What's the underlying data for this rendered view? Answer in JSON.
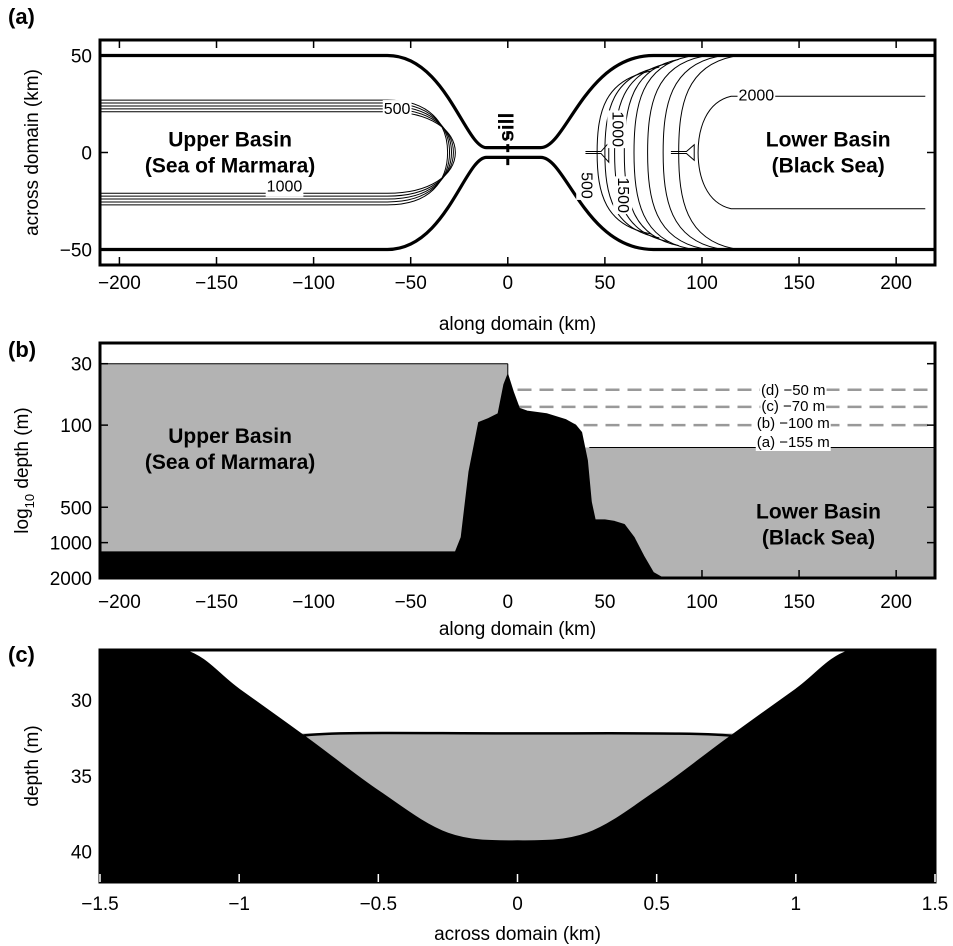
{
  "figure": {
    "panels": [
      "(a)",
      "(b)",
      "(c)"
    ]
  },
  "chart_data": [
    {
      "panel": "(a)",
      "type": "contour",
      "xlabel": "along domain (km)",
      "ylabel": "across domain (km)",
      "xlim": [
        -210,
        220
      ],
      "ylim": [
        -58,
        58
      ],
      "xticks": [
        -200,
        -150,
        -100,
        -50,
        0,
        50,
        100,
        150,
        200
      ],
      "yticks": [
        50,
        0,
        -50
      ],
      "xticklabels": [
        "−200",
        "−150",
        "−100",
        "−50",
        "0",
        "50",
        "100",
        "150",
        "200"
      ],
      "yticklabels": [
        "50",
        "0",
        "−50"
      ],
      "basin_half_width_km": 50,
      "strait_half_width_km": 2.5,
      "contour_labels": [
        {
          "text": "500",
          "x": -57,
          "y": 22
        },
        {
          "text": "1000",
          "x": -115,
          "y": -18
        },
        {
          "text": "1000",
          "x": 56,
          "y": 12
        },
        {
          "text": "500",
          "x": 40,
          "y": -17
        },
        {
          "text": "1500",
          "x": 59,
          "y": -22
        },
        {
          "text": "2000",
          "x": 128,
          "y": 29
        }
      ],
      "annotations": [
        {
          "text": "sill",
          "x": 0,
          "y": 13
        }
      ],
      "regions": [
        {
          "line1": "Upper Basin",
          "line2": "(Sea of Marmara)",
          "x": -143,
          "y": 0
        },
        {
          "line1": "Lower Basin",
          "line2": "(Black Sea)",
          "x": 165,
          "y": 0
        }
      ]
    },
    {
      "panel": "(b)",
      "type": "area",
      "xlabel": "along domain (km)",
      "ylabel_main": "log",
      "ylabel_sub": "10",
      "ylabel_rest": " depth (m)",
      "xlim": [
        -210,
        220
      ],
      "ylim": [
        20,
        2000
      ],
      "yscale": "log",
      "xticks": [
        -200,
        -150,
        -100,
        -50,
        0,
        50,
        100,
        150,
        200
      ],
      "xticklabels": [
        "−200",
        "−150",
        "−100",
        "−50",
        "0",
        "50",
        "100",
        "150",
        "200"
      ],
      "yticks": [
        30,
        100,
        500,
        1000,
        2000
      ],
      "yticklabels": [
        "30",
        "100",
        "500",
        "1000",
        "2000"
      ],
      "upper_basin_surface_m": 30,
      "lower_basin_surface_m": 155,
      "bathymetry": {
        "x": [
          -210,
          -27,
          -24,
          -20,
          -15,
          -10,
          -5,
          -2,
          0,
          3,
          6,
          10,
          20,
          30,
          35,
          38,
          41,
          43,
          45,
          50,
          55,
          60,
          65,
          70,
          75,
          80,
          220
        ],
        "depth": [
          1200,
          1200,
          900,
          250,
          95,
          88,
          80,
          45,
          37,
          53,
          72,
          76,
          80,
          90,
          100,
          115,
          200,
          450,
          640,
          640,
          660,
          700,
          900,
          1300,
          1800,
          2000,
          2000
        ]
      },
      "levels": [
        {
          "label": "(d) −50 m",
          "depth": 50
        },
        {
          "label": "(c) −70 m",
          "depth": 70
        },
        {
          "label": "(b) −100 m",
          "depth": 100
        },
        {
          "label": "(a) −155 m",
          "depth": 155
        }
      ],
      "regions": [
        {
          "line1": "Upper Basin",
          "line2": "(Sea of Marmara)",
          "x": -143,
          "depth": 160
        },
        {
          "line1": "Lower Basin",
          "line2": "(Black Sea)",
          "x": 160,
          "depth": 700
        }
      ]
    },
    {
      "panel": "(c)",
      "type": "area",
      "xlabel": "across domain (km)",
      "ylabel": "depth (m)",
      "xlim": [
        -1.5,
        1.5
      ],
      "ylim": [
        26.7,
        42
      ],
      "xticks": [
        -1.5,
        -1,
        -0.5,
        0,
        0.5,
        1,
        1.5
      ],
      "xticklabels": [
        "−1.5",
        "−1",
        "−0.5",
        "0",
        "0.5",
        "1",
        "1.5"
      ],
      "yticks": [
        30,
        35,
        40
      ],
      "yticklabels": [
        "30",
        "35",
        "40"
      ],
      "water_surface_m": 32.2,
      "cross_section": {
        "x": [
          -1.5,
          -1.2,
          -1.0,
          -0.75,
          -0.5,
          -0.25,
          0,
          0.25,
          0.5,
          0.75,
          1.0,
          1.2,
          1.5
        ],
        "depth": [
          26.7,
          26.7,
          29.3,
          32.6,
          36.0,
          38.8,
          39.3,
          38.8,
          36.0,
          32.6,
          29.3,
          26.7,
          26.7
        ]
      }
    }
  ]
}
